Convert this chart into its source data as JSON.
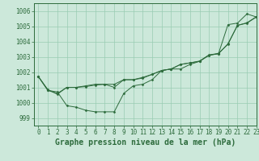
{
  "background_color": "#cce8da",
  "grid_color": "#99ccb3",
  "line_color": "#2d6b3c",
  "marker_color": "#2d6b3c",
  "title": "Graphe pression niveau de la mer (hPa)",
  "tick_fontsize": 5.5,
  "title_fontsize": 7.0,
  "xlim": [
    -0.5,
    23
  ],
  "ylim": [
    998.5,
    1006.5
  ],
  "yticks": [
    999,
    1000,
    1001,
    1002,
    1003,
    1004,
    1005,
    1006
  ],
  "xticks": [
    0,
    1,
    2,
    3,
    4,
    5,
    6,
    7,
    8,
    9,
    10,
    11,
    12,
    13,
    14,
    15,
    16,
    17,
    18,
    19,
    20,
    21,
    22,
    23
  ],
  "series": [
    [
      1001.7,
      1000.8,
      1000.7,
      999.8,
      999.7,
      999.5,
      999.4,
      999.4,
      999.4,
      1000.6,
      1001.1,
      1001.2,
      1001.5,
      1002.1,
      1002.2,
      1002.2,
      1002.5,
      1002.7,
      1003.1,
      1003.2,
      1005.1,
      1005.2,
      1005.8,
      1005.6
    ],
    [
      1001.7,
      1000.8,
      1000.6,
      1001.0,
      1001.0,
      1001.05,
      1001.15,
      1001.2,
      1001.0,
      1001.5,
      1001.5,
      1001.6,
      1001.85,
      1002.1,
      1002.2,
      1002.5,
      1002.6,
      1002.7,
      1003.1,
      1003.2,
      1003.85,
      1005.05,
      1005.2,
      1005.6
    ],
    [
      1001.7,
      1000.85,
      1000.55,
      1001.0,
      1001.0,
      1001.1,
      1001.2,
      1001.2,
      1001.2,
      1001.5,
      1001.5,
      1001.65,
      1001.85,
      1002.1,
      1002.2,
      1002.5,
      1002.6,
      1002.72,
      1003.12,
      1003.22,
      1003.82,
      1005.05,
      1005.22,
      1005.62
    ]
  ]
}
